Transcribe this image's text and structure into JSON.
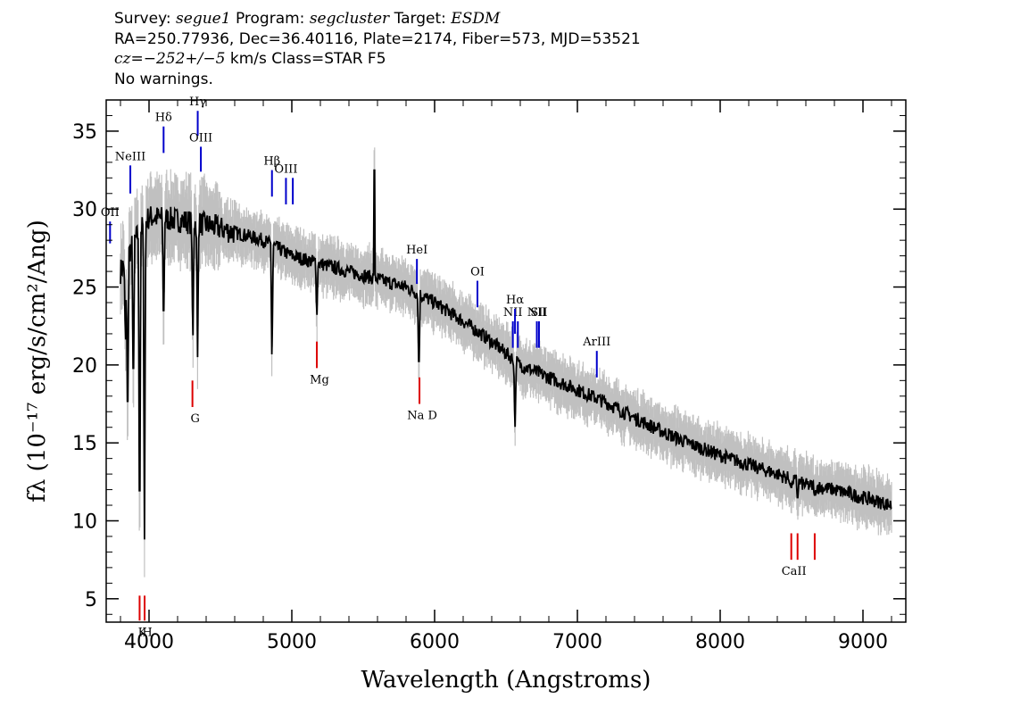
{
  "header": {
    "survey_label": "Survey:",
    "survey": "segue1",
    "program_label": "Program:",
    "program": "segcluster",
    "target_label": "Target:",
    "target": "ESDM",
    "line2": "RA=250.77936, Dec=36.40116, Plate=2174, Fiber=573, MJD=53521",
    "cz_label": "cz=",
    "cz_value": "−252+/−5",
    "cz_rest": " km/s Class=STAR F5",
    "warnings": "No warnings."
  },
  "chart_data": {
    "type": "line",
    "xlabel": "Wavelength (Angstroms)",
    "ylabel": "fλ (10⁻¹⁷ erg/s/cm²/Ang)",
    "xlim": [
      3700,
      9300
    ],
    "ylim": [
      3.5,
      37
    ],
    "x_ticks": [
      4000,
      5000,
      6000,
      7000,
      8000,
      9000
    ],
    "y_ticks": [
      5,
      10,
      15,
      20,
      25,
      30,
      35
    ],
    "series_colors": {
      "spectrum": "#000000",
      "noise": "#c0c0c0",
      "emission": "#0000cc",
      "absorption": "#dd0000"
    },
    "continuum_points": [
      [
        3800,
        26.0
      ],
      [
        3900,
        28.0
      ],
      [
        4000,
        29.5
      ],
      [
        4200,
        29.3
      ],
      [
        4400,
        29.0
      ],
      [
        4600,
        28.5
      ],
      [
        4800,
        28.0
      ],
      [
        5000,
        27.0
      ],
      [
        5200,
        26.5
      ],
      [
        5400,
        26.0
      ],
      [
        5600,
        25.5
      ],
      [
        5800,
        25.0
      ],
      [
        6000,
        24.0
      ],
      [
        6200,
        22.8
      ],
      [
        6400,
        21.5
      ],
      [
        6600,
        20.0
      ],
      [
        6800,
        19.2
      ],
      [
        7000,
        18.4
      ],
      [
        7200,
        17.6
      ],
      [
        7400,
        16.6
      ],
      [
        7600,
        15.7
      ],
      [
        7800,
        14.9
      ],
      [
        8000,
        14.2
      ],
      [
        8200,
        13.6
      ],
      [
        8400,
        13.0
      ],
      [
        8600,
        12.3
      ],
      [
        8800,
        12.0
      ],
      [
        9000,
        11.5
      ],
      [
        9200,
        11.0
      ]
    ],
    "absorption_dips": [
      {
        "x": 3835,
        "y": 21.0
      },
      {
        "x": 3850,
        "y": 15.0
      },
      {
        "x": 3890,
        "y": 17.5
      },
      {
        "x": 3934,
        "y": 7.2
      },
      {
        "x": 3968,
        "y": 8.8
      },
      {
        "x": 4102,
        "y": 21.8
      },
      {
        "x": 4307,
        "y": 21.0
      },
      {
        "x": 4340,
        "y": 20.5
      },
      {
        "x": 4861,
        "y": 19.8
      },
      {
        "x": 5175,
        "y": 22.8
      },
      {
        "x": 5890,
        "y": 19.0
      },
      {
        "x": 6563,
        "y": 15.5
      },
      {
        "x": 8498,
        "y": 12.0
      },
      {
        "x": 8542,
        "y": 11.2
      },
      {
        "x": 8662,
        "y": 11.5
      }
    ],
    "spike": {
      "x": 5577,
      "y": 32.5
    },
    "emission_lines": [
      {
        "label": "OII",
        "x": 3727,
        "y_top": 29.2,
        "y_bot": 27.8
      },
      {
        "label": "NeIII",
        "x": 3869,
        "y_top": 32.8,
        "y_bot": 31.0
      },
      {
        "label": "Hδ",
        "x": 4102,
        "y_top": 35.3,
        "y_bot": 33.6
      },
      {
        "label": "Hγ",
        "x": 4341,
        "y_top": 36.3,
        "y_bot": 34.7
      },
      {
        "label": "OIII",
        "x": 4363,
        "y_top": 34.0,
        "y_bot": 32.4
      },
      {
        "label": "Hβ",
        "x": 4861,
        "y_top": 32.5,
        "y_bot": 30.8
      },
      {
        "label": "OIII",
        "x": 4959,
        "y_top": 32.0,
        "y_bot": 30.3
      },
      {
        "label": "",
        "x": 5007,
        "y_top": 32.0,
        "y_bot": 30.3
      },
      {
        "label": "HeI",
        "x": 5876,
        "y_top": 26.8,
        "y_bot": 25.2
      },
      {
        "label": "OI",
        "x": 6300,
        "y_top": 25.4,
        "y_bot": 23.7
      },
      {
        "label": "NII",
        "x": 6548,
        "y_top": 22.8,
        "y_bot": 21.1
      },
      {
        "label": "Hα",
        "x": 6563,
        "y_top": 23.6,
        "y_bot": 22.0
      },
      {
        "label": "",
        "x": 6583,
        "y_top": 22.8,
        "y_bot": 21.1
      },
      {
        "label": "NII",
        "x": 6716,
        "y_top": 22.8,
        "y_bot": 21.1
      },
      {
        "label": "SII",
        "x": 6731,
        "y_top": 22.8,
        "y_bot": 21.1
      },
      {
        "label": "ArIII",
        "x": 7136,
        "y_top": 20.9,
        "y_bot": 19.2
      }
    ],
    "absorption_lines": [
      {
        "label": "K",
        "x": 3934,
        "y_top": 5.2,
        "y_bot": 3.6
      },
      {
        "label": "H",
        "x": 3969,
        "y_top": 5.2,
        "y_bot": 3.6
      },
      {
        "label": "G",
        "x": 4304,
        "y_top": 19.0,
        "y_bot": 17.3
      },
      {
        "label": "Mg",
        "x": 5175,
        "y_top": 21.5,
        "y_bot": 19.8
      },
      {
        "label": "Na D",
        "x": 5894,
        "y_top": 19.2,
        "y_bot": 17.5
      },
      {
        "label": "CaII",
        "x": 8498,
        "y_top": 9.2,
        "y_bot": 7.5
      },
      {
        "label": "",
        "x": 8542,
        "y_top": 9.2,
        "y_bot": 7.5
      },
      {
        "label": "",
        "x": 8662,
        "y_top": 9.2,
        "y_bot": 7.5
      }
    ]
  }
}
